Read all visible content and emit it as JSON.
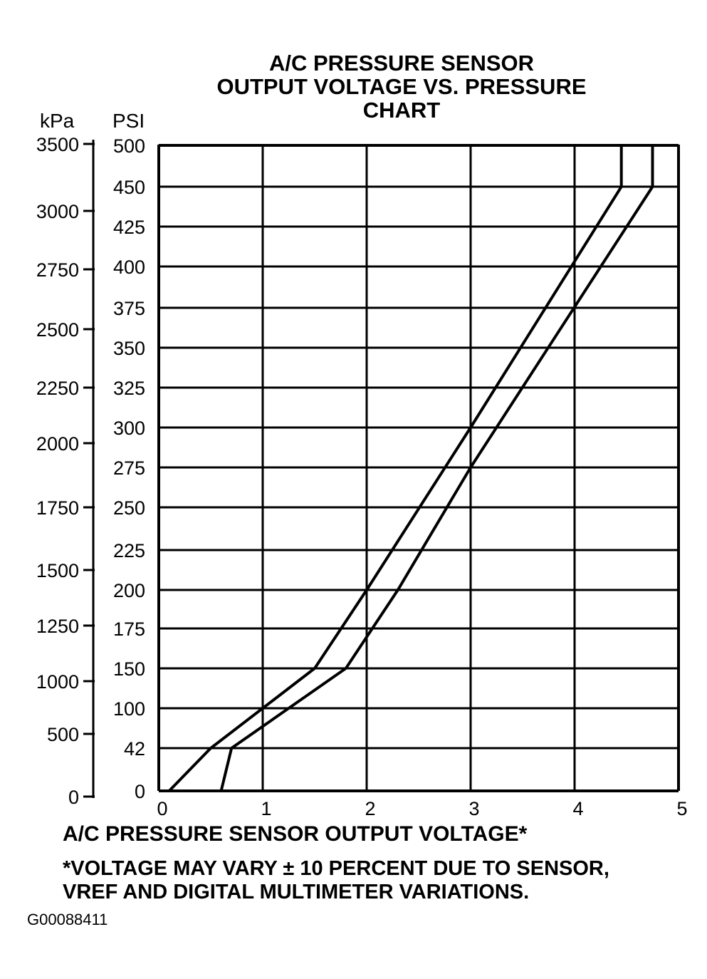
{
  "chart_data": {
    "type": "line",
    "title_lines": [
      "A/C PRESSURE SENSOR",
      "OUTPUT VOLTAGE VS. PRESSURE",
      "CHART"
    ],
    "left_axis_unit": "kPa",
    "left_axis_ticks": [
      "0",
      "500",
      "1000",
      "1250",
      "1500",
      "1750",
      "2000",
      "2250",
      "2500",
      "2750",
      "3000",
      "3500"
    ],
    "y_axis_unit": "PSI",
    "y_ticks": [
      "0",
      "42",
      "100",
      "150",
      "175",
      "200",
      "225",
      "250",
      "275",
      "300",
      "325",
      "350",
      "375",
      "400",
      "425",
      "450",
      "500"
    ],
    "x_ticks": [
      "0",
      "1",
      "2",
      "3",
      "4",
      "5"
    ],
    "xlim": [
      0,
      5
    ],
    "xlabel": "A/C PRESSURE SENSOR OUTPUT VOLTAGE*",
    "grid": true,
    "series": [
      {
        "role": "upper-bound",
        "points": [
          [
            0.1,
            0
          ],
          [
            0.5,
            42
          ],
          [
            1.5,
            150
          ],
          [
            2.0,
            200
          ],
          [
            3.0,
            300
          ],
          [
            4.45,
            450
          ],
          [
            4.45,
            500
          ]
        ]
      },
      {
        "role": "lower-bound",
        "points": [
          [
            0.6,
            0
          ],
          [
            0.7,
            42
          ],
          [
            1.8,
            150
          ],
          [
            2.3,
            200
          ],
          [
            3.0,
            275
          ],
          [
            4.75,
            450
          ],
          [
            4.75,
            500
          ]
        ]
      }
    ],
    "stroke_color": "#000000"
  },
  "footnote_lines": [
    "*VOLTAGE MAY VARY ± 10 PERCENT DUE TO SENSOR,",
    "VREF AND DIGITAL MULTIMETER VARIATIONS."
  ],
  "figure_id": "G00088411"
}
